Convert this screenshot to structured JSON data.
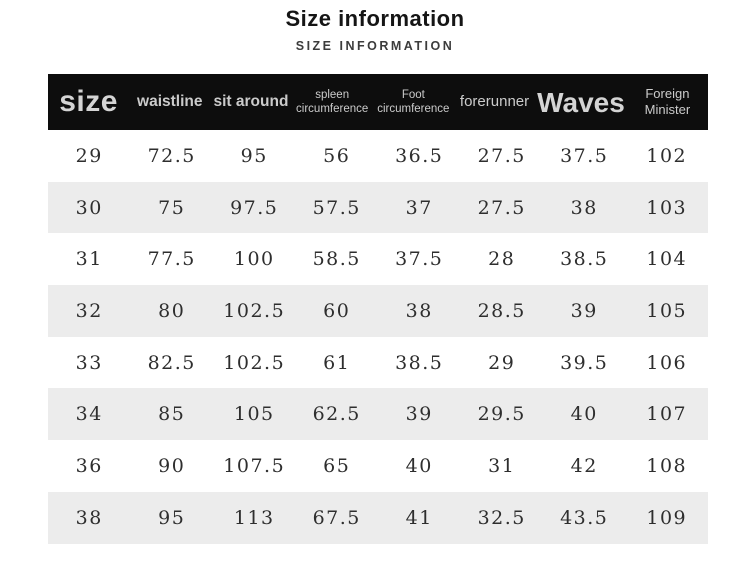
{
  "page": {
    "title": "Size information",
    "subtitle": "SIZE INFORMATION"
  },
  "table": {
    "headers": [
      "size",
      "waistline",
      "sit around",
      "spleen circumference",
      "Foot circumference",
      "forerunner",
      "Waves",
      "Foreign Minister"
    ],
    "rows": [
      [
        "29",
        "72.5",
        "95",
        "56",
        "36.5",
        "27.5",
        "37.5",
        "102"
      ],
      [
        "30",
        "75",
        "97.5",
        "57.5",
        "37",
        "27.5",
        "38",
        "103"
      ],
      [
        "31",
        "77.5",
        "100",
        "58.5",
        "37.5",
        "28",
        "38.5",
        "104"
      ],
      [
        "32",
        "80",
        "102.5",
        "60",
        "38",
        "28.5",
        "39",
        "105"
      ],
      [
        "33",
        "82.5",
        "102.5",
        "61",
        "38.5",
        "29",
        "39.5",
        "106"
      ],
      [
        "34",
        "85",
        "105",
        "62.5",
        "39",
        "29.5",
        "40",
        "107"
      ],
      [
        "36",
        "90",
        "107.5",
        "65",
        "40",
        "31",
        "42",
        "108"
      ],
      [
        "38",
        "95",
        "113",
        "67.5",
        "41",
        "32.5",
        "43.5",
        "109"
      ]
    ]
  },
  "colors": {
    "header_background": "#0d0d0d",
    "header_text": "#cbcbcb",
    "row_alternate": "#ececec",
    "row_default": "#ffffff",
    "number_text": "#2e2e2e",
    "title_text": "#151515",
    "subtitle_text": "#3c3c3c"
  },
  "chart_data": {
    "type": "table",
    "title": "Size information",
    "subtitle": "SIZE INFORMATION",
    "columns": [
      "size",
      "waistline",
      "sit around",
      "spleen circumference",
      "Foot circumference",
      "forerunner",
      "Waves",
      "Foreign Minister"
    ],
    "rows": [
      [
        29,
        72.5,
        95,
        56,
        36.5,
        27.5,
        37.5,
        102
      ],
      [
        30,
        75,
        97.5,
        57.5,
        37,
        27.5,
        38,
        103
      ],
      [
        31,
        77.5,
        100,
        58.5,
        37.5,
        28,
        38.5,
        104
      ],
      [
        32,
        80,
        102.5,
        60,
        38,
        28.5,
        39,
        105
      ],
      [
        33,
        82.5,
        102.5,
        61,
        38.5,
        29,
        39.5,
        106
      ],
      [
        34,
        85,
        105,
        62.5,
        39,
        29.5,
        40,
        107
      ],
      [
        36,
        90,
        107.5,
        65,
        40,
        31,
        42,
        108
      ],
      [
        38,
        95,
        113,
        67.5,
        41,
        32.5,
        43.5,
        109
      ]
    ],
    "layout_hints": {
      "header_style": "inverted-black-bar",
      "zebra_striping": true,
      "gridlines": false,
      "column_alignment": "center"
    }
  }
}
